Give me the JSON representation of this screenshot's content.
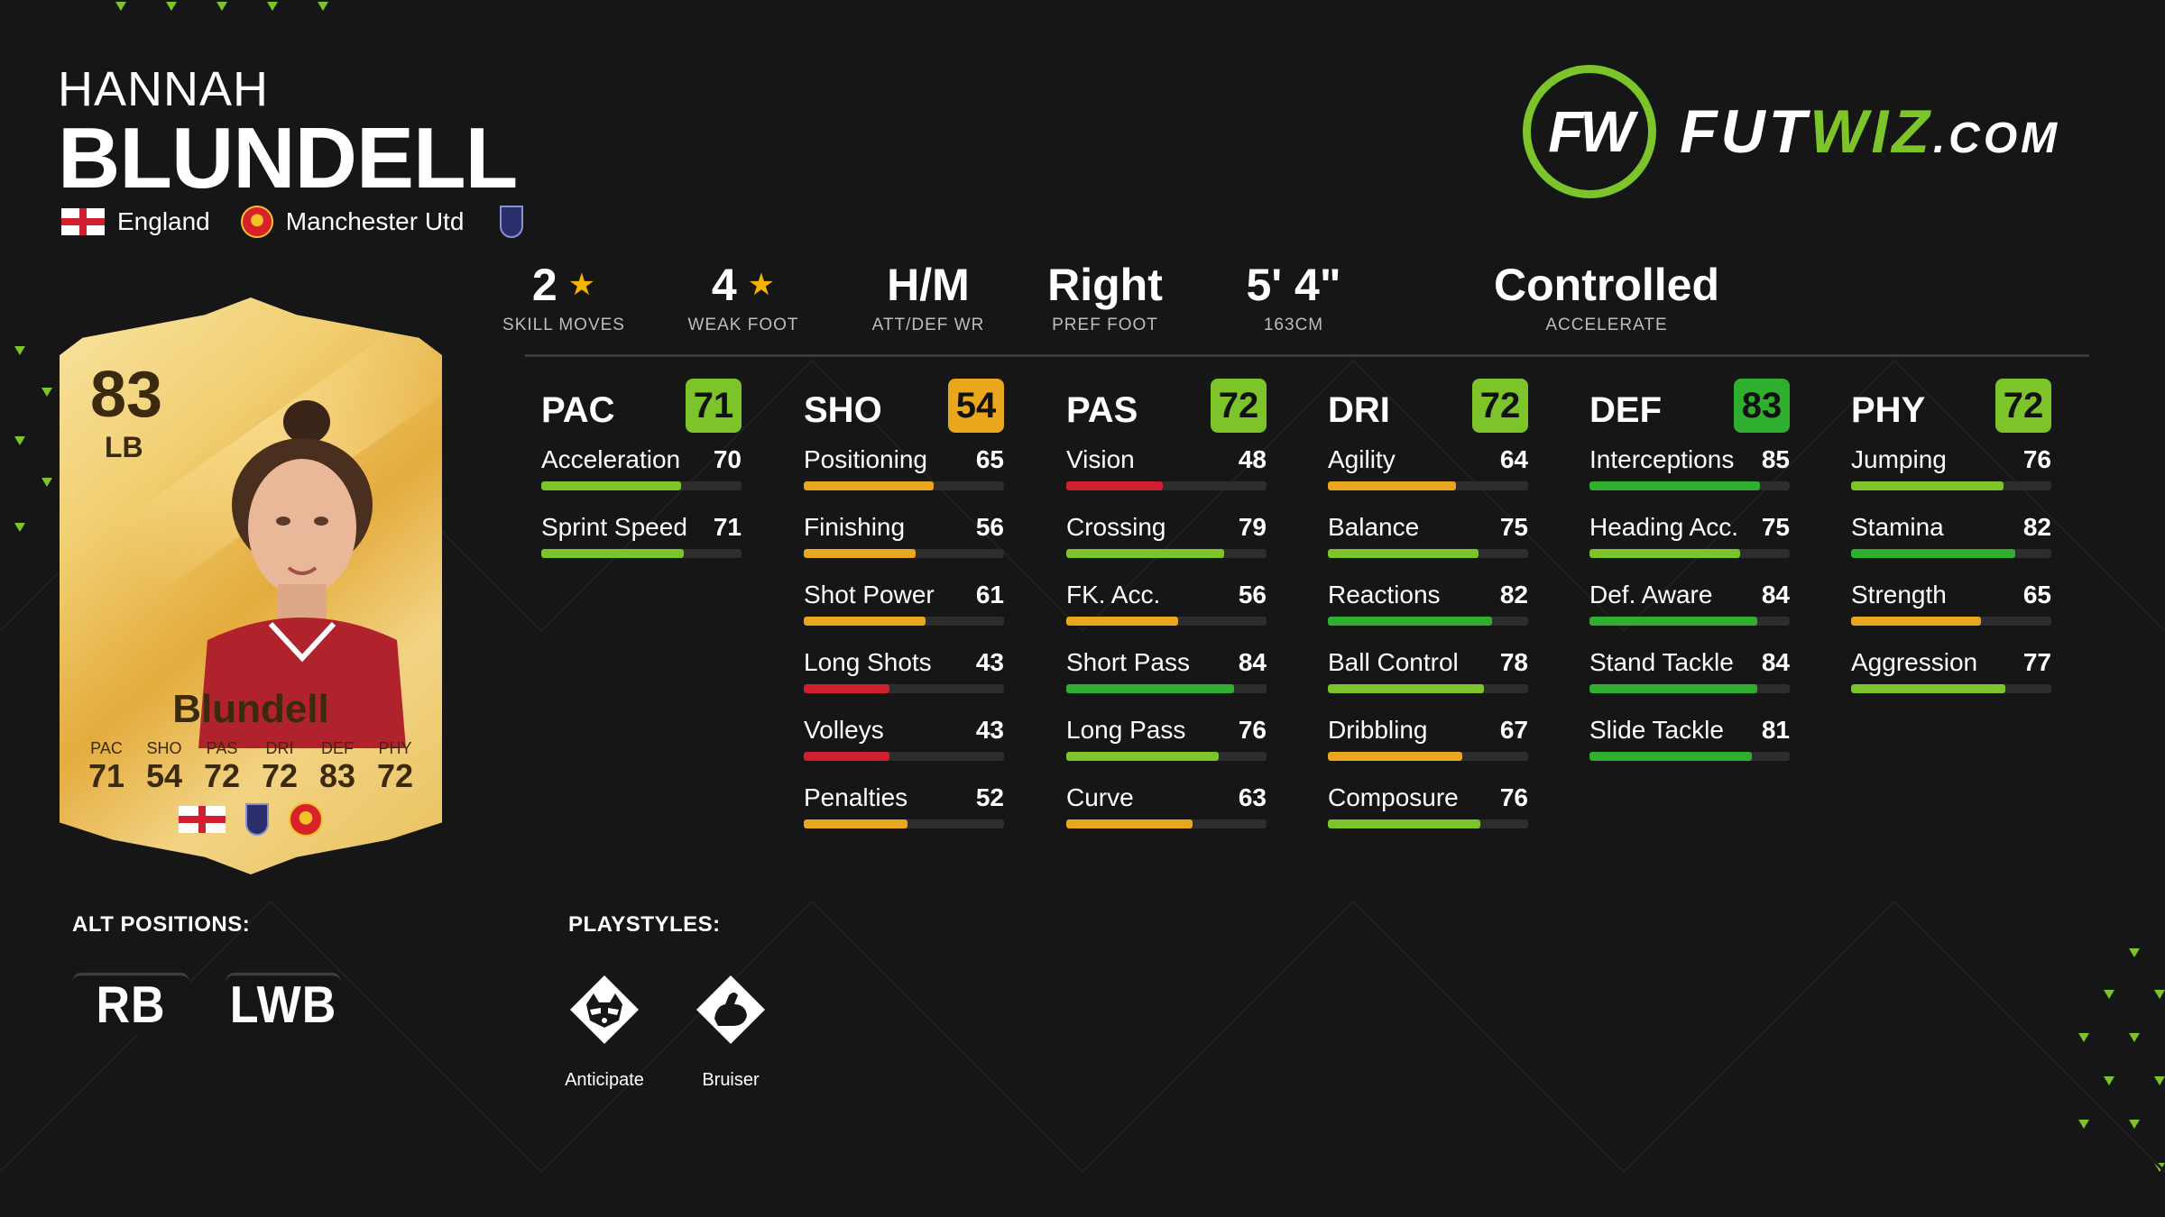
{
  "player": {
    "first_name": "HANNAH",
    "last_name": "BLUNDELL",
    "nation": "England",
    "club": "Manchester Utd",
    "league_icon": "womens-league-badge-icon"
  },
  "brand": {
    "mark": "FW",
    "name_part1": "FUT",
    "name_part2": "WIZ",
    "name_part3": ".COM",
    "accent": "#7cc42a"
  },
  "info": [
    {
      "value": "2",
      "star": true,
      "label": "SKILL MOVES"
    },
    {
      "value": "4",
      "star": true,
      "label": "WEAK FOOT"
    },
    {
      "value": "H/M",
      "star": false,
      "label": "ATT/DEF WR"
    },
    {
      "value": "Right",
      "star": false,
      "label": "PREF FOOT"
    },
    {
      "value": "5' 4\"",
      "star": false,
      "label": "163CM"
    },
    {
      "value": "Controlled",
      "star": false,
      "label": "ACCELERATE"
    }
  ],
  "columns": [
    {
      "name": "PAC",
      "rating": "71",
      "badge_color": "#7cc42a",
      "stats": [
        {
          "name": "Acceleration",
          "value": "70"
        },
        {
          "name": "Sprint Speed",
          "value": "71"
        }
      ]
    },
    {
      "name": "SHO",
      "rating": "54",
      "badge_color": "#e8a71c",
      "stats": [
        {
          "name": "Positioning",
          "value": "65"
        },
        {
          "name": "Finishing",
          "value": "56"
        },
        {
          "name": "Shot Power",
          "value": "61"
        },
        {
          "name": "Long Shots",
          "value": "43"
        },
        {
          "name": "Volleys",
          "value": "43"
        },
        {
          "name": "Penalties",
          "value": "52"
        }
      ]
    },
    {
      "name": "PAS",
      "rating": "72",
      "badge_color": "#7cc42a",
      "stats": [
        {
          "name": "Vision",
          "value": "48"
        },
        {
          "name": "Crossing",
          "value": "79"
        },
        {
          "name": "FK. Acc.",
          "value": "56"
        },
        {
          "name": "Short Pass",
          "value": "84"
        },
        {
          "name": "Long Pass",
          "value": "76"
        },
        {
          "name": "Curve",
          "value": "63"
        }
      ]
    },
    {
      "name": "DRI",
      "rating": "72",
      "badge_color": "#7cc42a",
      "stats": [
        {
          "name": "Agility",
          "value": "64"
        },
        {
          "name": "Balance",
          "value": "75"
        },
        {
          "name": "Reactions",
          "value": "82"
        },
        {
          "name": "Ball Control",
          "value": "78"
        },
        {
          "name": "Dribbling",
          "value": "67"
        },
        {
          "name": "Composure",
          "value": "76"
        }
      ]
    },
    {
      "name": "DEF",
      "rating": "83",
      "badge_color": "#2fae2f",
      "stats": [
        {
          "name": "Interceptions",
          "value": "85"
        },
        {
          "name": "Heading Acc.",
          "value": "75"
        },
        {
          "name": "Def. Aware",
          "value": "84"
        },
        {
          "name": "Stand Tackle",
          "value": "84"
        },
        {
          "name": "Slide Tackle",
          "value": "81"
        }
      ]
    },
    {
      "name": "PHY",
      "rating": "72",
      "badge_color": "#7cc42a",
      "stats": [
        {
          "name": "Jumping",
          "value": "76"
        },
        {
          "name": "Stamina",
          "value": "82"
        },
        {
          "name": "Strength",
          "value": "65"
        },
        {
          "name": "Aggression",
          "value": "77"
        }
      ]
    }
  ],
  "colors": {
    "bar_low": "#d0202f",
    "bar_mid": "#e8a71c",
    "bar_good": "#7cc42a",
    "bar_high": "#2fae2f",
    "background": "#161616"
  },
  "card": {
    "rating": "83",
    "position": "LB",
    "name": "Blundell",
    "stats": [
      {
        "label": "PAC",
        "value": "71"
      },
      {
        "label": "SHO",
        "value": "54"
      },
      {
        "label": "PAS",
        "value": "72"
      },
      {
        "label": "DRI",
        "value": "72"
      },
      {
        "label": "DEF",
        "value": "83"
      },
      {
        "label": "PHY",
        "value": "72"
      }
    ]
  },
  "alt_positions": {
    "title": "ALT POSITIONS:",
    "items": [
      "RB",
      "LWB"
    ]
  },
  "playstyles": {
    "title": "PLAYSTYLES:",
    "items": [
      {
        "label": "Anticipate",
        "icon": "raccoon-icon"
      },
      {
        "label": "Bruiser",
        "icon": "flexed-arm-icon"
      }
    ]
  }
}
